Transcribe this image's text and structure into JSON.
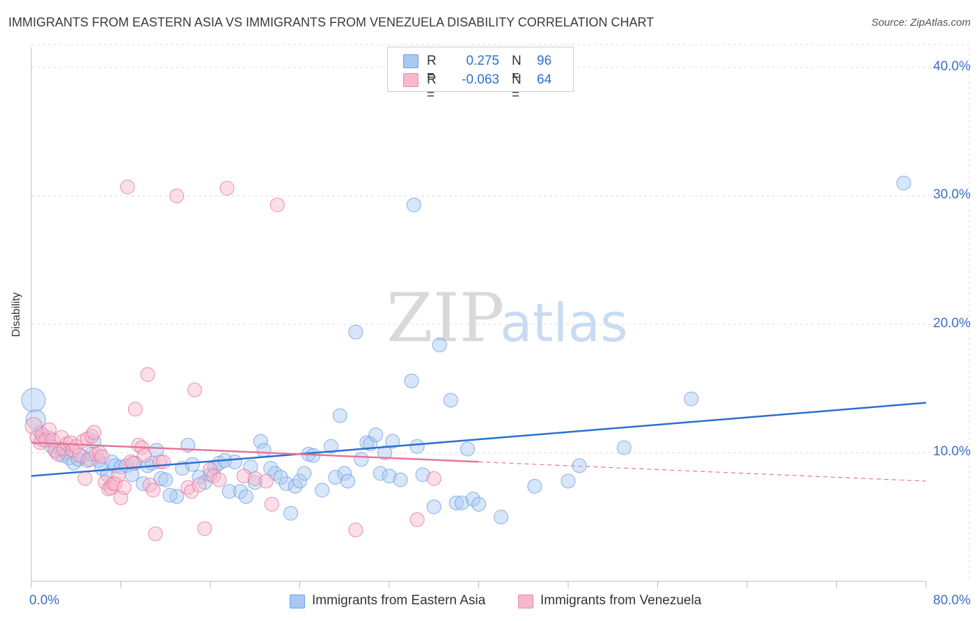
{
  "header": {
    "title": "IMMIGRANTS FROM EASTERN ASIA VS IMMIGRANTS FROM VENEZUELA DISABILITY CORRELATION CHART",
    "source": "Source: ZipAtlas.com"
  },
  "watermark": {
    "zip": "ZIP",
    "atlas": "atlas"
  },
  "legend": {
    "rows": [
      {
        "r_label": "R =",
        "r_value": "0.275",
        "n_label": "N =",
        "n_value": "96",
        "color": "#a9c8f2",
        "border": "#6a9ee3"
      },
      {
        "r_label": "R =",
        "r_value": "-0.063",
        "n_label": "N =",
        "n_value": "64",
        "color": "#f7b8cb",
        "border": "#e98aa8"
      }
    ]
  },
  "bottom_legend": [
    {
      "label": "Immigrants from Eastern Asia",
      "color": "#a9c8f2",
      "border": "#6a9ee3"
    },
    {
      "label": "Immigrants from Venezuela",
      "color": "#f7b8cb",
      "border": "#e98aa8"
    }
  ],
  "chart_data": {
    "type": "scatter",
    "title": "IMMIGRANTS FROM EASTERN ASIA VS IMMIGRANTS FROM VENEZUELA DISABILITY CORRELATION CHART",
    "xlabel": "",
    "ylabel": "Disability",
    "xlim": [
      0,
      80
    ],
    "ylim": [
      0,
      42
    ],
    "x_tick_labels": [
      "0.0%",
      "80.0%"
    ],
    "y_ticks": [
      10,
      20,
      30,
      40
    ],
    "y_tick_labels": [
      "10.0%",
      "20.0%",
      "30.0%",
      "40.0%"
    ],
    "grid": true,
    "legend_position": "top-center",
    "series": [
      {
        "name": "Immigrants from Eastern Asia",
        "color": "#6a9ee3",
        "fill": "#a9c8f2",
        "trend": {
          "x": [
            0,
            80
          ],
          "y": [
            8.2,
            13.9
          ]
        },
        "points": [
          [
            0.2,
            14.1
          ],
          [
            0.4,
            12.6
          ],
          [
            0.8,
            11.6
          ],
          [
            1.0,
            11.0
          ],
          [
            1.5,
            11.2
          ],
          [
            1.8,
            10.5
          ],
          [
            2.2,
            10.1
          ],
          [
            2.8,
            9.8
          ],
          [
            3.1,
            10.0
          ],
          [
            3.4,
            9.6
          ],
          [
            3.8,
            9.2
          ],
          [
            4.2,
            9.5
          ],
          [
            4.6,
            9.7
          ],
          [
            5.0,
            9.4
          ],
          [
            5.6,
            10.9
          ],
          [
            6.0,
            9.4
          ],
          [
            6.3,
            8.8
          ],
          [
            6.8,
            8.3
          ],
          [
            7.2,
            9.3
          ],
          [
            7.5,
            9.0
          ],
          [
            8.0,
            8.9
          ],
          [
            8.5,
            9.0
          ],
          [
            9.0,
            8.3
          ],
          [
            9.3,
            9.2
          ],
          [
            10.0,
            7.6
          ],
          [
            10.4,
            9.0
          ],
          [
            10.8,
            9.2
          ],
          [
            11.2,
            10.2
          ],
          [
            11.6,
            8.0
          ],
          [
            12.0,
            7.9
          ],
          [
            13.0,
            6.6
          ],
          [
            13.5,
            8.8
          ],
          [
            14.0,
            10.6
          ],
          [
            14.4,
            9.1
          ],
          [
            15.0,
            8.1
          ],
          [
            15.5,
            7.7
          ],
          [
            16.0,
            8.3
          ],
          [
            16.4,
            8.9
          ],
          [
            16.8,
            9.2
          ],
          [
            17.3,
            9.4
          ],
          [
            17.7,
            7.0
          ],
          [
            18.2,
            9.3
          ],
          [
            18.7,
            7.0
          ],
          [
            19.2,
            6.6
          ],
          [
            19.6,
            8.9
          ],
          [
            20.0,
            7.7
          ],
          [
            20.5,
            10.9
          ],
          [
            20.8,
            10.2
          ],
          [
            21.4,
            8.8
          ],
          [
            21.8,
            8.4
          ],
          [
            22.3,
            8.1
          ],
          [
            22.8,
            7.6
          ],
          [
            23.2,
            5.3
          ],
          [
            23.6,
            7.4
          ],
          [
            24.0,
            7.8
          ],
          [
            24.4,
            8.4
          ],
          [
            24.8,
            9.9
          ],
          [
            25.2,
            9.8
          ],
          [
            26.0,
            7.1
          ],
          [
            26.8,
            10.5
          ],
          [
            27.2,
            8.1
          ],
          [
            27.6,
            12.9
          ],
          [
            28.0,
            8.4
          ],
          [
            28.3,
            7.8
          ],
          [
            29.0,
            19.4
          ],
          [
            29.5,
            9.5
          ],
          [
            30.0,
            10.8
          ],
          [
            30.3,
            10.7
          ],
          [
            30.8,
            11.4
          ],
          [
            31.2,
            8.4
          ],
          [
            31.6,
            10.0
          ],
          [
            32.0,
            8.2
          ],
          [
            32.3,
            10.9
          ],
          [
            33.0,
            7.9
          ],
          [
            34.0,
            15.6
          ],
          [
            34.2,
            29.3
          ],
          [
            34.5,
            10.5
          ],
          [
            35.0,
            8.3
          ],
          [
            36.0,
            5.8
          ],
          [
            36.5,
            18.4
          ],
          [
            37.5,
            14.1
          ],
          [
            38.0,
            6.1
          ],
          [
            38.5,
            6.1
          ],
          [
            39.0,
            10.3
          ],
          [
            39.5,
            6.4
          ],
          [
            40.0,
            6.0
          ],
          [
            42.0,
            5.0
          ],
          [
            45.0,
            7.4
          ],
          [
            48.0,
            7.8
          ],
          [
            49.0,
            9.0
          ],
          [
            53.0,
            10.4
          ],
          [
            59.0,
            14.2
          ],
          [
            78.0,
            31.0
          ],
          [
            5.4,
            9.9
          ],
          [
            2.6,
            10.3
          ],
          [
            12.4,
            6.7
          ]
        ]
      },
      {
        "name": "Immigrants from Venezuela",
        "color": "#e9739a",
        "fill": "#f7b8cb",
        "trend": {
          "x": [
            0,
            40
          ],
          "y": [
            10.8,
            9.3
          ]
        },
        "trend_dashed": {
          "x": [
            40,
            80
          ],
          "y": [
            9.3,
            7.8
          ]
        },
        "points": [
          [
            0.2,
            12.1
          ],
          [
            0.5,
            11.2
          ],
          [
            0.8,
            10.8
          ],
          [
            1.0,
            11.4
          ],
          [
            1.3,
            11.0
          ],
          [
            1.6,
            11.8
          ],
          [
            1.9,
            11.0
          ],
          [
            2.1,
            10.2
          ],
          [
            2.4,
            9.9
          ],
          [
            2.7,
            11.2
          ],
          [
            2.9,
            10.3
          ],
          [
            3.2,
            10.7
          ],
          [
            3.5,
            10.8
          ],
          [
            3.7,
            10.2
          ],
          [
            4.0,
            10.5
          ],
          [
            4.3,
            9.8
          ],
          [
            4.6,
            10.9
          ],
          [
            4.8,
            8.0
          ],
          [
            5.0,
            11.1
          ],
          [
            5.2,
            9.5
          ],
          [
            5.4,
            11.3
          ],
          [
            5.6,
            11.6
          ],
          [
            5.8,
            9.9
          ],
          [
            6.1,
            10.0
          ],
          [
            6.3,
            9.7
          ],
          [
            6.6,
            7.7
          ],
          [
            6.9,
            7.2
          ],
          [
            7.1,
            7.3
          ],
          [
            7.3,
            7.6
          ],
          [
            7.5,
            7.6
          ],
          [
            7.8,
            8.3
          ],
          [
            8.0,
            6.5
          ],
          [
            8.3,
            7.3
          ],
          [
            8.6,
            30.7
          ],
          [
            8.9,
            9.3
          ],
          [
            9.1,
            9.2
          ],
          [
            9.3,
            13.4
          ],
          [
            9.6,
            10.6
          ],
          [
            9.9,
            10.4
          ],
          [
            10.1,
            9.8
          ],
          [
            10.4,
            16.1
          ],
          [
            10.6,
            7.5
          ],
          [
            10.9,
            7.1
          ],
          [
            11.1,
            3.7
          ],
          [
            11.5,
            9.3
          ],
          [
            11.8,
            9.3
          ],
          [
            13.0,
            30.0
          ],
          [
            14.0,
            7.3
          ],
          [
            14.3,
            7.0
          ],
          [
            14.6,
            14.9
          ],
          [
            15.0,
            7.5
          ],
          [
            15.5,
            4.1
          ],
          [
            16.0,
            8.7
          ],
          [
            16.3,
            8.2
          ],
          [
            16.8,
            7.9
          ],
          [
            17.5,
            30.6
          ],
          [
            19.0,
            8.2
          ],
          [
            20.0,
            8.0
          ],
          [
            21.0,
            7.8
          ],
          [
            21.5,
            6.0
          ],
          [
            22.0,
            29.3
          ],
          [
            29.0,
            4.0
          ],
          [
            34.5,
            4.8
          ],
          [
            36.0,
            8.0
          ]
        ]
      }
    ]
  }
}
